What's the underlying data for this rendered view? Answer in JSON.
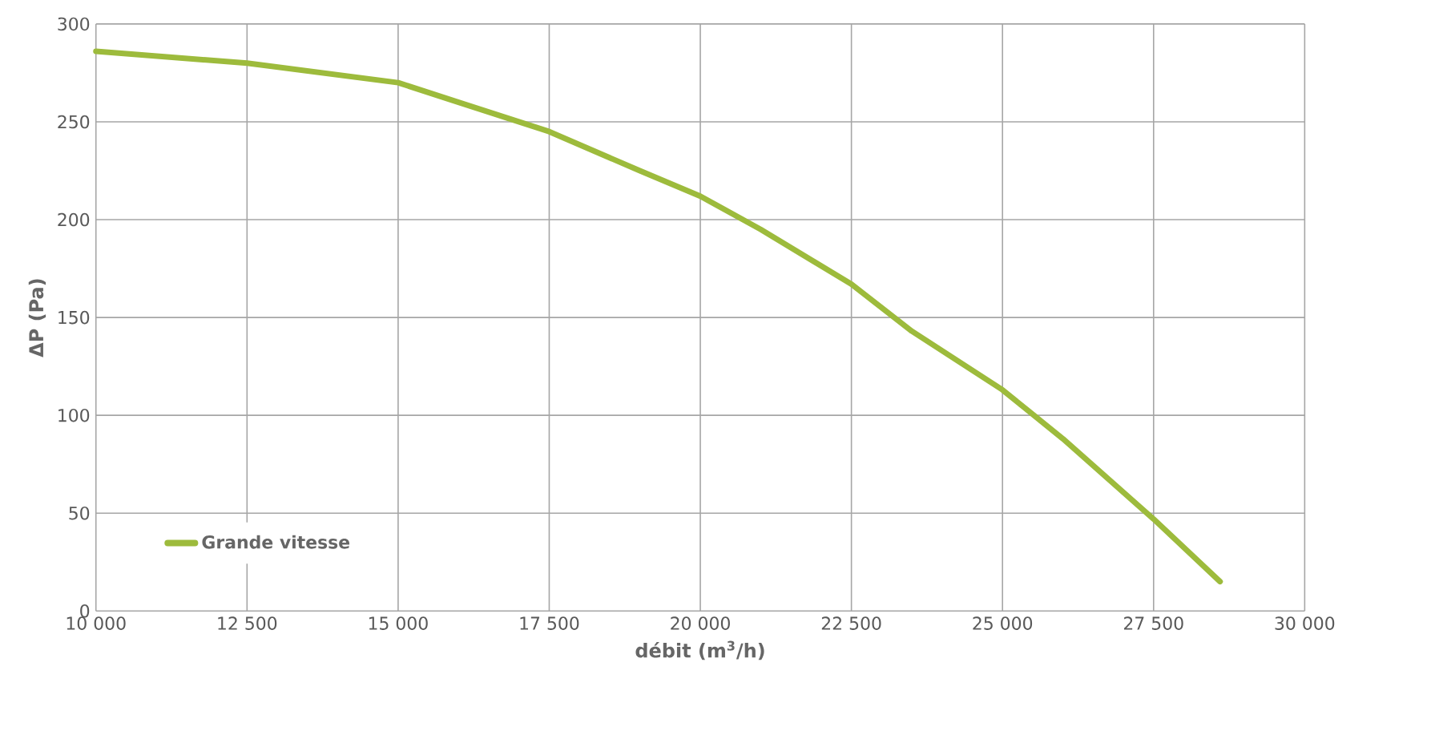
{
  "chart_data": {
    "type": "line",
    "xlabel": "débit (m$^{3}$/h)",
    "ylabel": "ΔP (Pa)",
    "series": [
      {
        "name": "Grande vitesse",
        "color": "#9dbb3c",
        "x": [
          10000,
          12500,
          15000,
          16000,
          17500,
          19000,
          20000,
          21000,
          22500,
          23500,
          25000,
          26000,
          27500,
          28600
        ],
        "values": [
          286,
          280,
          270,
          260,
          245,
          225,
          212,
          195,
          167,
          143,
          113,
          88,
          47,
          15
        ]
      }
    ],
    "xlim": [
      10000,
      30000
    ],
    "xticks": [
      {
        "value": 10000,
        "label": "10 000"
      },
      {
        "value": 12500,
        "label": "12 500"
      },
      {
        "value": 15000,
        "label": "15 000"
      },
      {
        "value": 17500,
        "label": "17 500"
      },
      {
        "value": 20000,
        "label": "20 000"
      },
      {
        "value": 22500,
        "label": "22 500"
      },
      {
        "value": 25000,
        "label": "25 000"
      },
      {
        "value": 27500,
        "label": "27 500"
      },
      {
        "value": 30000,
        "label": "30 000"
      }
    ],
    "ylim": [
      0,
      300
    ],
    "yticks": [
      0,
      50,
      100,
      150,
      200,
      250,
      300
    ],
    "grid": true,
    "legend": "bottom left",
    "marker": "none",
    "line_style": "solid"
  }
}
